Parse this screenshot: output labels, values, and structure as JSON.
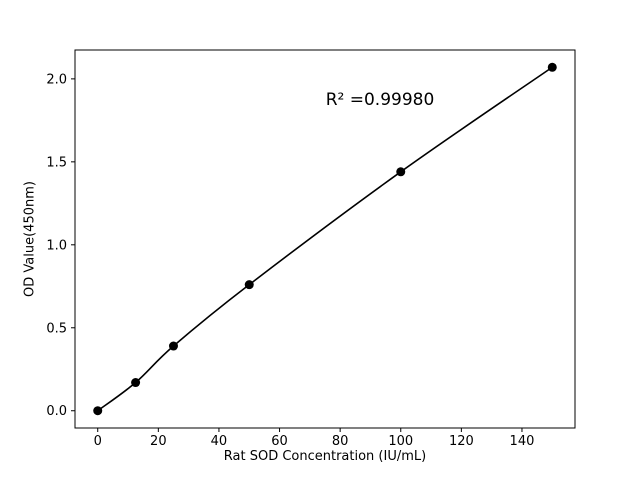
{
  "chart_data": {
    "type": "line",
    "title": "",
    "xlabel": "Rat SOD Concentration (IU/mL)",
    "ylabel": "OD Value(450nm)",
    "x": [
      0,
      12.5,
      25,
      50,
      100,
      150
    ],
    "y": [
      0.0,
      0.17,
      0.39,
      0.76,
      1.44,
      2.07
    ],
    "markers": true,
    "marker_color": "#000000",
    "line_color": "#000000",
    "grid": false,
    "legend": null,
    "xlim": [
      -7.5,
      157.5
    ],
    "ylim": [
      -0.104,
      2.174
    ],
    "xticks": [
      0,
      20,
      40,
      60,
      80,
      100,
      120,
      140
    ],
    "xtick_labels": [
      "0",
      "20",
      "40",
      "60",
      "80",
      "100",
      "120",
      "140"
    ],
    "yticks": [
      0.0,
      0.5,
      1.0,
      1.5,
      2.0
    ],
    "ytick_labels": [
      "0.0",
      "0.5",
      "1.0",
      "1.5",
      "2.0"
    ],
    "annotation": {
      "text": "R² =0.99980",
      "x": 93,
      "y": 1.87
    }
  }
}
